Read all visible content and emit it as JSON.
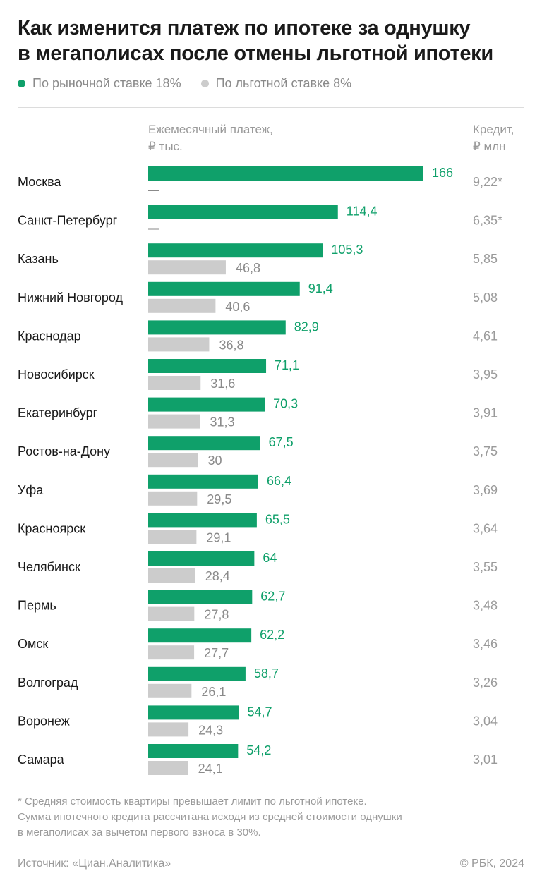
{
  "title_lines": [
    "Как изменится платеж по ипотеке за однушку",
    "в мегаполисах после отмены льготной ипотеки"
  ],
  "legend": {
    "market": "По рыночной ставке 18%",
    "preferential": "По льготной ставке 8%"
  },
  "column_headers": {
    "payment": [
      "Ежемесячный платеж,",
      "₽ тыс."
    ],
    "credit": [
      "Кредит,",
      "₽ млн"
    ]
  },
  "colors": {
    "market": "#0fa06a",
    "preferential": "#cccccc",
    "market_label": "#0fa06a",
    "preferential_label": "#8a8a8a",
    "credit_label": "#9a9a9a"
  },
  "chart_data": {
    "type": "bar",
    "orientation": "horizontal",
    "categories": [
      "Москва",
      "Санкт-Петербург",
      "Казань",
      "Нижний Новгород",
      "Краснодар",
      "Новосибирск",
      "Екатеринбург",
      "Ростов-на-Дону",
      "Уфа",
      "Красноярск",
      "Челябинск",
      "Пермь",
      "Омск",
      "Волгоград",
      "Воронеж",
      "Самара"
    ],
    "series": [
      {
        "name": "По рыночной ставке 18%",
        "values": [
          166,
          114.4,
          105.3,
          91.4,
          82.9,
          71.1,
          70.3,
          67.5,
          66.4,
          65.5,
          64,
          62.7,
          62.2,
          58.7,
          54.7,
          54.2
        ],
        "labels": [
          "166",
          "114,4",
          "105,3",
          "91,4",
          "82,9",
          "71,1",
          "70,3",
          "67,5",
          "66,4",
          "65,5",
          "64",
          "62,7",
          "62,2",
          "58,7",
          "54,7",
          "54,2"
        ]
      },
      {
        "name": "По льготной ставке 8%",
        "values": [
          null,
          null,
          46.8,
          40.6,
          36.8,
          31.6,
          31.3,
          30,
          29.5,
          29.1,
          28.4,
          27.8,
          27.7,
          26.1,
          24.3,
          24.1
        ],
        "labels": [
          "—",
          "—",
          "46,8",
          "40,6",
          "36,8",
          "31,6",
          "31,3",
          "30",
          "29,5",
          "29,1",
          "28,4",
          "27,8",
          "27,7",
          "26,1",
          "24,3",
          "24,1"
        ]
      }
    ],
    "credit_labels": [
      "9,22*",
      "6,35*",
      "5,85",
      "5,08",
      "4,61",
      "3,95",
      "3,91",
      "3,75",
      "3,69",
      "3,64",
      "3,55",
      "3,48",
      "3,46",
      "3,26",
      "3,04",
      "3,01"
    ]
  },
  "footnote_lines": [
    "* Средняя стоимость квартиры превышает лимит по льготной ипотеке.",
    "Сумма ипотечного кредита рассчитана исходя из средней стоимости однушки",
    "в мегаполисах за вычетом первого взноса в 30%."
  ],
  "source": "Источник: «Циан.Аналитика»",
  "copyright": "© РБК, 2024"
}
